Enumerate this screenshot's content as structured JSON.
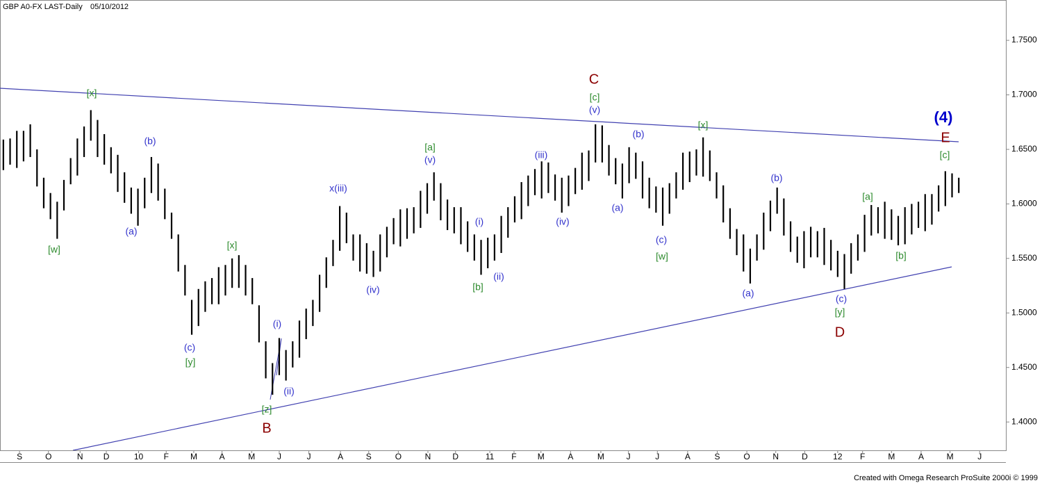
{
  "chart_data": {
    "type": "ohlc",
    "title": "GBP A0-FX LAST-Daily",
    "date": "05/10/2012",
    "footer": "Created with Omega Research ProSuite 2000i © 1999",
    "color": "#000000",
    "x": [
      0,
      1,
      2,
      3,
      4,
      5,
      6,
      7,
      8,
      9,
      10,
      11,
      12,
      13,
      14,
      15,
      16,
      17,
      18,
      19,
      20,
      21,
      22,
      23,
      24,
      25,
      26,
      27,
      28,
      29,
      30,
      31,
      32,
      33,
      34,
      35,
      36,
      37,
      38,
      39,
      40,
      41,
      42,
      43,
      44,
      45,
      46,
      47,
      48,
      49,
      50,
      51,
      52,
      53,
      54,
      55,
      56,
      57,
      58,
      59,
      60,
      61,
      62,
      63,
      64,
      65,
      66,
      67,
      68,
      69,
      70,
      71,
      72,
      73,
      74,
      75,
      76,
      77,
      78,
      79,
      80,
      81,
      82,
      83,
      84,
      85,
      86,
      87,
      88,
      89,
      90,
      91,
      92,
      93,
      94,
      95,
      96,
      97,
      98,
      99,
      100,
      101,
      102,
      103,
      104,
      105,
      106,
      107,
      108,
      109,
      110,
      111,
      112,
      113,
      114,
      115,
      116,
      117,
      118,
      119,
      120,
      121,
      122,
      123,
      124,
      125,
      126,
      127,
      128,
      129,
      130,
      131,
      132,
      133,
      134,
      135,
      136,
      137,
      138,
      139,
      140,
      141,
      142
    ],
    "high": [
      1.659,
      1.66,
      1.667,
      1.667,
      1.673,
      1.65,
      1.624,
      1.61,
      1.602,
      1.622,
      1.642,
      1.66,
      1.671,
      1.686,
      1.677,
      1.664,
      1.652,
      1.645,
      1.629,
      1.615,
      1.614,
      1.624,
      1.643,
      1.637,
      1.614,
      1.592,
      1.572,
      1.544,
      1.512,
      1.522,
      1.529,
      1.532,
      1.542,
      1.544,
      1.55,
      1.553,
      1.544,
      1.532,
      1.507,
      1.474,
      1.454,
      1.477,
      1.466,
      1.474,
      1.493,
      1.504,
      1.512,
      1.535,
      1.551,
      1.567,
      1.598,
      1.592,
      1.572,
      1.572,
      1.564,
      1.557,
      1.572,
      1.579,
      1.587,
      1.595,
      1.596,
      1.597,
      1.612,
      1.619,
      1.629,
      1.619,
      1.604,
      1.597,
      1.597,
      1.584,
      1.572,
      1.567,
      1.569,
      1.572,
      1.589,
      1.597,
      1.607,
      1.62,
      1.626,
      1.632,
      1.639,
      1.638,
      1.627,
      1.624,
      1.626,
      1.633,
      1.647,
      1.649,
      1.673,
      1.672,
      1.654,
      1.642,
      1.637,
      1.652,
      1.647,
      1.639,
      1.624,
      1.616,
      1.615,
      1.619,
      1.629,
      1.647,
      1.648,
      1.65,
      1.661,
      1.649,
      1.629,
      1.617,
      1.596,
      1.577,
      1.572,
      1.559,
      1.572,
      1.592,
      1.603,
      1.615,
      1.605,
      1.584,
      1.57,
      1.575,
      1.579,
      1.575,
      1.578,
      1.567,
      1.557,
      1.554,
      1.564,
      1.572,
      1.59,
      1.599,
      1.597,
      1.602,
      1.595,
      1.589,
      1.597,
      1.6,
      1.602,
      1.609,
      1.609,
      1.617,
      1.63,
      1.628,
      1.624
    ],
    "low": [
      1.631,
      1.636,
      1.633,
      1.639,
      1.643,
      1.616,
      1.596,
      1.586,
      1.568,
      1.594,
      1.618,
      1.626,
      1.643,
      1.658,
      1.643,
      1.636,
      1.628,
      1.611,
      1.601,
      1.591,
      1.58,
      1.596,
      1.61,
      1.603,
      1.586,
      1.568,
      1.538,
      1.516,
      1.48,
      1.488,
      1.501,
      1.508,
      1.508,
      1.516,
      1.523,
      1.523,
      1.516,
      1.508,
      1.473,
      1.44,
      1.425,
      1.443,
      1.438,
      1.45,
      1.459,
      1.476,
      1.488,
      1.501,
      1.523,
      1.543,
      1.557,
      1.564,
      1.548,
      1.538,
      1.536,
      1.533,
      1.538,
      1.551,
      1.563,
      1.561,
      1.568,
      1.573,
      1.578,
      1.591,
      1.603,
      1.585,
      1.576,
      1.573,
      1.563,
      1.556,
      1.548,
      1.535,
      1.541,
      1.548,
      1.555,
      1.569,
      1.583,
      1.586,
      1.598,
      1.608,
      1.605,
      1.61,
      1.603,
      1.592,
      1.598,
      1.609,
      1.613,
      1.621,
      1.638,
      1.638,
      1.626,
      1.618,
      1.605,
      1.619,
      1.623,
      1.605,
      1.596,
      1.592,
      1.58,
      1.591,
      1.605,
      1.613,
      1.62,
      1.626,
      1.625,
      1.621,
      1.605,
      1.583,
      1.568,
      1.553,
      1.538,
      1.527,
      1.548,
      1.558,
      1.575,
      1.591,
      1.571,
      1.556,
      1.546,
      1.541,
      1.551,
      1.551,
      1.544,
      1.539,
      1.533,
      1.522,
      1.536,
      1.548,
      1.556,
      1.571,
      1.573,
      1.568,
      1.567,
      1.562,
      1.563,
      1.572,
      1.578,
      1.575,
      1.581,
      1.593,
      1.598,
      1.606,
      1.61
    ],
    "xlim": [
      -0.5,
      149
    ],
    "ylim": [
      1.374,
      1.787
    ],
    "yticks": [
      {
        "value": 1.4,
        "label": "1.4000"
      },
      {
        "value": 1.45,
        "label": "1.4500"
      },
      {
        "value": 1.5,
        "label": "1.5000"
      },
      {
        "value": 1.55,
        "label": "1.5500"
      },
      {
        "value": 1.6,
        "label": "1.6000"
      },
      {
        "value": 1.65,
        "label": "1.6500"
      },
      {
        "value": 1.7,
        "label": "1.7000"
      },
      {
        "value": 1.75,
        "label": "1.7500"
      }
    ],
    "xticks": [
      {
        "value": 2.4,
        "label": "S"
      },
      {
        "value": 6.7,
        "label": "O"
      },
      {
        "value": 11.4,
        "label": "N"
      },
      {
        "value": 15.3,
        "label": "D"
      },
      {
        "value": 20.1,
        "label": "10"
      },
      {
        "value": 24.2,
        "label": "F"
      },
      {
        "value": 28.3,
        "label": "M"
      },
      {
        "value": 32.5,
        "label": "A"
      },
      {
        "value": 36.9,
        "label": "M"
      },
      {
        "value": 41.0,
        "label": "J"
      },
      {
        "value": 45.4,
        "label": "J"
      },
      {
        "value": 50.1,
        "label": "A"
      },
      {
        "value": 54.3,
        "label": "S"
      },
      {
        "value": 58.7,
        "label": "O"
      },
      {
        "value": 63.1,
        "label": "N"
      },
      {
        "value": 67.2,
        "label": "D"
      },
      {
        "value": 72.3,
        "label": "11"
      },
      {
        "value": 75.9,
        "label": "F"
      },
      {
        "value": 79.9,
        "label": "M"
      },
      {
        "value": 84.3,
        "label": "A"
      },
      {
        "value": 88.8,
        "label": "M"
      },
      {
        "value": 92.9,
        "label": "J"
      },
      {
        "value": 97.2,
        "label": "J"
      },
      {
        "value": 101.7,
        "label": "A"
      },
      {
        "value": 106.1,
        "label": "S"
      },
      {
        "value": 110.5,
        "label": "O"
      },
      {
        "value": 114.8,
        "label": "N"
      },
      {
        "value": 119.1,
        "label": "D"
      },
      {
        "value": 124.0,
        "label": "12"
      },
      {
        "value": 127.7,
        "label": "F"
      },
      {
        "value": 132.0,
        "label": "M"
      },
      {
        "value": 136.4,
        "label": "A"
      },
      {
        "value": 140.7,
        "label": "M"
      },
      {
        "value": 145.1,
        "label": "J"
      }
    ],
    "annotations": [
      {
        "text": "[x]",
        "color": "#2e8b2e"
      },
      {
        "text": "(b)",
        "color": "#3333cc"
      },
      {
        "text": "[w]",
        "color": "#2e8b2e"
      },
      {
        "text": "(a)",
        "color": "#3333cc"
      },
      {
        "text": "[x]",
        "color": "#2e8b2e"
      },
      {
        "text": "(c)",
        "color": "#3333cc"
      },
      {
        "text": "[y]",
        "color": "#2e8b2e"
      },
      {
        "text": "(i)",
        "color": "#3333cc"
      },
      {
        "text": "(ii)",
        "color": "#3333cc"
      },
      {
        "text": "[z]",
        "color": "#2e8b2e"
      },
      {
        "text": "B",
        "color": "#8b0000"
      },
      {
        "text": "x(iii)",
        "color": "#3333cc"
      },
      {
        "text": "(iv)",
        "color": "#3333cc"
      },
      {
        "text": "[a]",
        "color": "#2e8b2e"
      },
      {
        "text": "(v)",
        "color": "#3333cc"
      },
      {
        "text": "(i)",
        "color": "#3333cc"
      },
      {
        "text": "(ii)",
        "color": "#3333cc"
      },
      {
        "text": "[b]",
        "color": "#2e8b2e"
      },
      {
        "text": "(iii)",
        "color": "#3333cc"
      },
      {
        "text": "(iv)",
        "color": "#3333cc"
      },
      {
        "text": "C",
        "color": "#8b0000"
      },
      {
        "text": "[c]",
        "color": "#2e8b2e"
      },
      {
        "text": "(v)",
        "color": "#3333cc"
      },
      {
        "text": "(b)",
        "color": "#3333cc"
      },
      {
        "text": "(a)",
        "color": "#3333cc"
      },
      {
        "text": "(c)",
        "color": "#3333cc"
      },
      {
        "text": "[w]",
        "color": "#2e8b2e"
      },
      {
        "text": "[x]",
        "color": "#2e8b2e"
      },
      {
        "text": "(b)",
        "color": "#3333cc"
      },
      {
        "text": "(a)",
        "color": "#3333cc"
      },
      {
        "text": "(c)",
        "color": "#3333cc"
      },
      {
        "text": "[y]",
        "color": "#2e8b2e"
      },
      {
        "text": "D",
        "color": "#8b0000"
      },
      {
        "text": "[a]",
        "color": "#2e8b2e"
      },
      {
        "text": "[b]",
        "color": "#2e8b2e"
      },
      {
        "text": "(4)",
        "color": "#0000cc"
      },
      {
        "text": "E",
        "color": "#8b0000"
      },
      {
        "text": "[c]",
        "color": "#2e8b2e"
      }
    ]
  }
}
